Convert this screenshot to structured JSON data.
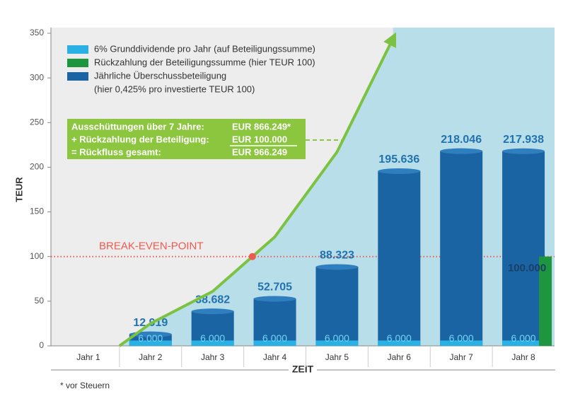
{
  "chart_data": {
    "type": "bar",
    "categories": [
      "Jahr 1",
      "Jahr 2",
      "Jahr 3",
      "Jahr 4",
      "Jahr 5",
      "Jahr 6",
      "Jahr 7",
      "Jahr 8"
    ],
    "series": [
      {
        "name": "Jährliche Überschussbeteiligung",
        "color": "#1b64a3",
        "values": [
          null,
          12.919,
          38.682,
          52.705,
          88.323,
          195.636,
          218.046,
          217.938
        ]
      },
      {
        "name": "6% Grunddividende pro Jahr (auf Beteiligungssumme)",
        "color": "#29b1e5",
        "values": [
          null,
          6,
          6,
          6,
          6,
          6,
          6,
          6
        ],
        "value_labels": [
          null,
          "6.000",
          "6.000",
          "6.000",
          "6.000",
          "6.000",
          "6.000",
          "6.000"
        ]
      },
      {
        "name": "Rückzahlung der Beteiligungssumme (hier TEUR 100)",
        "color": "#1e9640",
        "values": [
          null,
          null,
          null,
          null,
          null,
          null,
          null,
          100
        ],
        "value_labels": [
          null,
          null,
          null,
          null,
          null,
          null,
          null,
          "100.000"
        ]
      }
    ],
    "legend_order": [
      1,
      2,
      0
    ],
    "legend_note": "(hier 0,425% pro investierte TEUR 100)",
    "line": {
      "color": "#7cc242",
      "x": [
        1.5,
        2,
        3,
        4,
        5,
        5.9
      ],
      "values": [
        0,
        25,
        61,
        122,
        217,
        344
      ]
    },
    "xlim": [
      0.5,
      8.5
    ],
    "ylim": [
      0,
      350
    ],
    "yticks": [
      0,
      50,
      100,
      150,
      200,
      250,
      300,
      350
    ],
    "grid": false,
    "y_label": "TEUR",
    "x_label": "ZEIT",
    "break_even": {
      "label": "BREAK-EVEN-POINT",
      "value": 100,
      "color": "#ef5a50"
    },
    "summary": [
      [
        "Ausschüttungen über 7 Jahre:",
        "EUR 866.249*"
      ],
      [
        "+ Rückzahlung der Beteiligung:",
        "EUR 100.000"
      ],
      [
        "= Rückfluss gesamt:",
        "EUR 966.249"
      ]
    ],
    "footnote": "* vor Steuern"
  }
}
